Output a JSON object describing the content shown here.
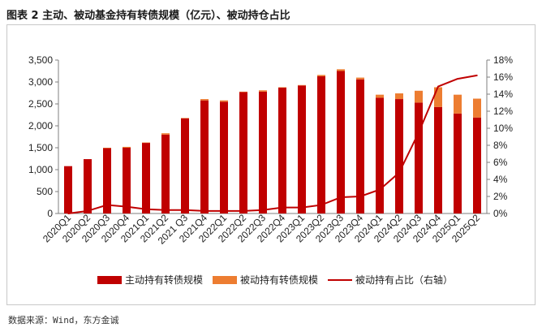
{
  "title": "图表 2  主动、被动基金持有转债规模（亿元）、被动持仓占比",
  "source": "数据来源：Wind，东方金诚",
  "colors": {
    "active": "#c00000",
    "passive": "#ed7d31",
    "line": "#c00000",
    "axis": "#7f7f7f"
  },
  "chart_data": {
    "type": "bar",
    "stacked": true,
    "categories": [
      "2020Q1",
      "2020Q2",
      "2020Q3",
      "2020Q4",
      "2021Q1",
      "2021Q2",
      "2021 Q3",
      "2021Q4",
      "2022Q1",
      "2022Q2",
      "2022Q3",
      "2022Q4",
      "2023Q1",
      "2023Q2",
      "2023Q3",
      "2023Q4",
      "2024Q1",
      "2024Q2",
      "2024Q3",
      "2024Q4",
      "2025Q1",
      "2025Q2"
    ],
    "series": [
      {
        "name": "主动持有转债规模",
        "type": "bar",
        "axis": "left",
        "values": [
          1080,
          1240,
          1490,
          1500,
          1610,
          1800,
          2170,
          2580,
          2550,
          2770,
          2780,
          2870,
          2920,
          3130,
          3250,
          3060,
          2640,
          2610,
          2530,
          2430,
          2280,
          2190
        ]
      },
      {
        "name": "被动持有转债规模",
        "type": "bar",
        "axis": "left",
        "values": [
          0,
          0,
          10,
          20,
          10,
          30,
          10,
          30,
          30,
          10,
          30,
          10,
          10,
          30,
          40,
          40,
          70,
          130,
          270,
          450,
          430,
          430
        ]
      },
      {
        "name": "被动持有占比（右轴）",
        "type": "line",
        "axis": "right",
        "values": [
          0.0,
          0.3,
          1.0,
          0.8,
          0.5,
          0.4,
          0.4,
          0.3,
          0.3,
          0.3,
          0.4,
          0.7,
          0.7,
          1.0,
          1.9,
          2.0,
          2.8,
          4.8,
          9.5,
          14.9,
          15.8,
          16.2
        ]
      }
    ],
    "y_left": {
      "min": 0,
      "max": 3500,
      "step": 500,
      "ticks": [
        "0",
        "500",
        "1,000",
        "1,500",
        "2,000",
        "2,500",
        "3,000",
        "3,500"
      ]
    },
    "y_right": {
      "min": 0,
      "max": 18,
      "step": 2,
      "ticks": [
        "0%",
        "2%",
        "4%",
        "6%",
        "8%",
        "10%",
        "12%",
        "14%",
        "16%",
        "18%"
      ]
    },
    "grid": false,
    "legend_position": "bottom"
  }
}
